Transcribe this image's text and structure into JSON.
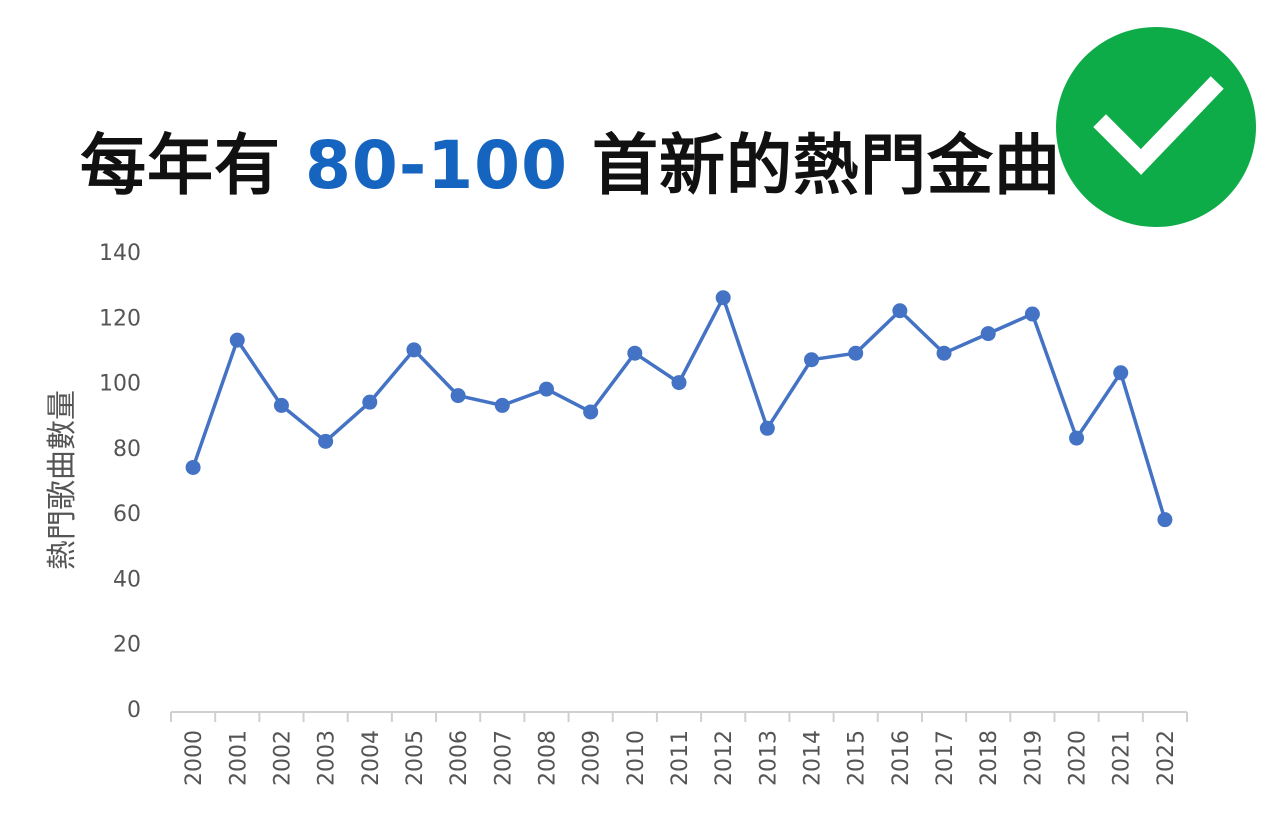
{
  "header": {
    "title_pre": "每年有",
    "title_highlight": "80-100",
    "title_post": "首新的熱門金曲",
    "highlight_color": "#1565c0"
  },
  "badge": {
    "icon": "checkmark-icon",
    "color": "#0eac48"
  },
  "chart_data": {
    "type": "line",
    "title": "",
    "xlabel": "",
    "ylabel": "熱門歌曲數量",
    "ylim": [
      0,
      140
    ],
    "yticks": [
      0,
      20,
      40,
      60,
      80,
      100,
      120,
      140
    ],
    "grid": false,
    "line_color": "#4472c4",
    "categories": [
      "2000",
      "2001",
      "2002",
      "2003",
      "2004",
      "2005",
      "2006",
      "2007",
      "2008",
      "2009",
      "2010",
      "2011",
      "2012",
      "2013",
      "2014",
      "2015",
      "2016",
      "2017",
      "2018",
      "2019",
      "2020",
      "2021",
      "2022"
    ],
    "series": [
      {
        "values": [
          74,
          113,
          93,
          82,
          94,
          110,
          96,
          93,
          98,
          91,
          109,
          100,
          126,
          86,
          107,
          109,
          122,
          109,
          115,
          121,
          83,
          103,
          58
        ]
      }
    ]
  }
}
